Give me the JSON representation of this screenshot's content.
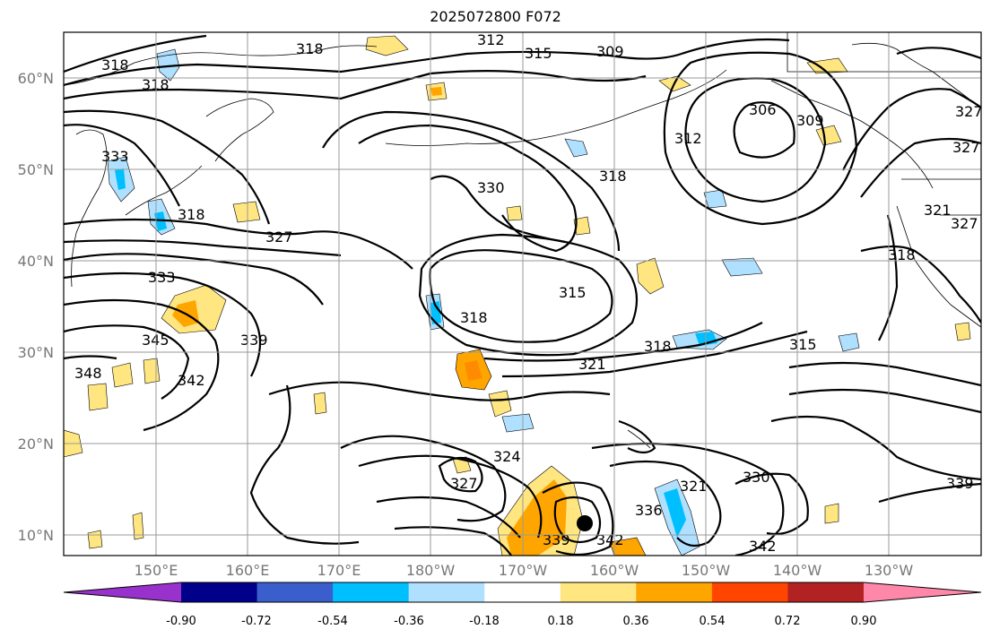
{
  "title": "2025072800 F072",
  "lat_labels": [
    "60°N",
    "50°N",
    "40°N",
    "30°N",
    "20°N",
    "10°N"
  ],
  "lon_labels": [
    "150°E",
    "160°E",
    "170°E",
    "180°W",
    "170°W",
    "160°W",
    "150°W",
    "140°W",
    "130°W"
  ],
  "contour_labels": [
    "318",
    "318",
    "318",
    "312",
    "315",
    "309",
    "306",
    "309",
    "312",
    "318",
    "327",
    "327",
    "327",
    "321",
    "333",
    "318",
    "327",
    "330",
    "315",
    "318",
    "333",
    "345",
    "339",
    "342",
    "348",
    "318",
    "321",
    "315",
    "324",
    "327",
    "321",
    "330",
    "336",
    "339",
    "342",
    "342",
    "339",
    "318"
  ],
  "colorbar": {
    "tick_labels": [
      "-0.90",
      "-0.72",
      "-0.54",
      "-0.36",
      "-0.18",
      "0.18",
      "0.36",
      "0.54",
      "0.72",
      "0.90"
    ],
    "colors": [
      "#9932cc",
      "#00008b",
      "#3a5fcd",
      "#00bfff",
      "#b0e0ff",
      "#ffffff",
      "#ffe680",
      "#ffa500",
      "#ff4500",
      "#b22222",
      "#ff88aa"
    ]
  }
}
